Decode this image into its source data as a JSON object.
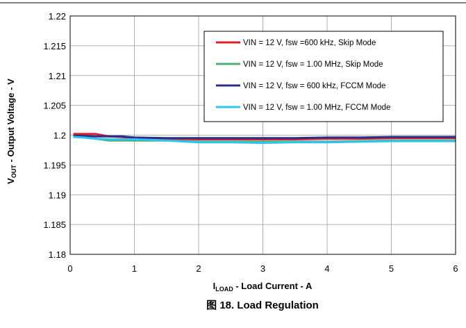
{
  "chart_data": {
    "type": "line",
    "xlabel_main": "I",
    "xlabel_sub": "LOAD",
    "xlabel_rest": " - Load Current - A",
    "ylabel_main": "V",
    "ylabel_sub": "OUT",
    "ylabel_rest": " - Output Voltage - V",
    "caption": "图 18. Load Regulation",
    "xlim": [
      0,
      6
    ],
    "ylim": [
      1.18,
      1.22
    ],
    "xticks": [
      0,
      1,
      2,
      3,
      4,
      5,
      6
    ],
    "yticks": [
      1.18,
      1.185,
      1.19,
      1.195,
      1.2,
      1.205,
      1.21,
      1.215,
      1.22
    ],
    "grid": true,
    "legend_position": "top-right",
    "series": [
      {
        "name": "VIN = 12 V, fsw =600 kHz, Skip Mode",
        "color": "#e31e24",
        "x": [
          0.05,
          0.2,
          0.4,
          0.6,
          0.8,
          1.0,
          1.5,
          2.0,
          2.5,
          3.0,
          3.5,
          4.0,
          4.5,
          5.0,
          5.5,
          6.0
        ],
        "y": [
          1.2002,
          1.2002,
          1.2002,
          1.1998,
          1.1997,
          1.1995,
          1.1994,
          1.1993,
          1.1993,
          1.1993,
          1.1993,
          1.1994,
          1.1994,
          1.1995,
          1.1995,
          1.1995
        ]
      },
      {
        "name": "VIN = 12 V, fsw = 1.00 MHz, Skip Mode",
        "color": "#4caf72",
        "x": [
          0.05,
          0.2,
          0.4,
          0.6,
          0.8,
          1.0,
          1.5,
          2.0,
          2.5,
          3.0,
          3.5,
          4.0,
          4.5,
          5.0,
          5.5,
          6.0
        ],
        "y": [
          1.1998,
          1.1997,
          1.1994,
          1.1991,
          1.1991,
          1.1991,
          1.1991,
          1.1989,
          1.1989,
          1.1989,
          1.1989,
          1.1989,
          1.199,
          1.1991,
          1.1991,
          1.1991
        ]
      },
      {
        "name": "VIN = 12 V, fsw = 600 kHz, FCCM Mode",
        "color": "#2b2f8a",
        "x": [
          0.05,
          0.2,
          0.4,
          0.6,
          0.8,
          1.0,
          1.5,
          2.0,
          2.5,
          3.0,
          3.5,
          4.0,
          4.5,
          5.0,
          5.5,
          6.0
        ],
        "y": [
          1.1999,
          1.1999,
          1.1998,
          1.1998,
          1.1998,
          1.1996,
          1.1995,
          1.1995,
          1.1995,
          1.1995,
          1.1995,
          1.1996,
          1.1996,
          1.1997,
          1.1997,
          1.1997
        ]
      },
      {
        "name": "VIN = 12 V, fsw = 1.00 MHz, FCCM Mode",
        "color": "#2ec4ef",
        "x": [
          0.05,
          0.2,
          0.4,
          0.6,
          0.8,
          1.0,
          1.5,
          2.0,
          2.5,
          3.0,
          3.5,
          4.0,
          4.5,
          5.0,
          5.5,
          6.0
        ],
        "y": [
          1.1997,
          1.1996,
          1.1994,
          1.1993,
          1.1993,
          1.1993,
          1.1991,
          1.1988,
          1.1988,
          1.1987,
          1.1988,
          1.1988,
          1.1989,
          1.199,
          1.199,
          1.199
        ]
      }
    ]
  }
}
